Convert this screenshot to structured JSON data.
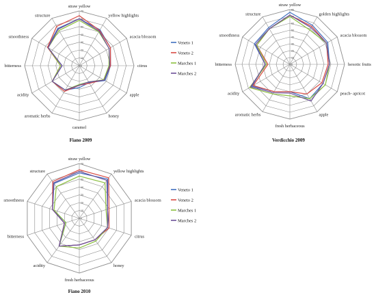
{
  "chart_data": [
    {
      "type": "radar",
      "title": "Fiano 2009",
      "axes": [
        "straw yellow",
        "yellow highlights",
        "acacia blossom",
        "citrus",
        "apple",
        "honey",
        "caramel",
        "aromatic herbs",
        "acidity",
        "bitterness",
        "smoothness",
        "structure"
      ],
      "ticks": [
        "0",
        "10",
        "20",
        "30",
        "40",
        "50",
        "60",
        "70"
      ],
      "rmax": 70,
      "legend_position": "right",
      "series": [
        {
          "name": "Veneto 1",
          "color": "#3f6fc0",
          "values": [
            60,
            53,
            46,
            40,
            38,
            25,
            28,
            36,
            40,
            22,
            47,
            55
          ]
        },
        {
          "name": "Veneto 2",
          "color": "#d84a43",
          "values": [
            64,
            52,
            46,
            40,
            36,
            26,
            25,
            38,
            40,
            24,
            47,
            58
          ]
        },
        {
          "name": "Marches 1",
          "color": "#8bbf3e",
          "values": [
            58,
            50,
            44,
            38,
            36,
            24,
            24,
            36,
            40,
            24,
            46,
            52
          ]
        },
        {
          "name": "Marches 2",
          "color": "#6a4e98",
          "values": [
            60,
            51,
            44,
            39,
            37,
            24,
            25,
            36,
            40,
            22,
            46,
            54
          ]
        }
      ]
    },
    {
      "type": "radar",
      "title": "Verdicchio 2009",
      "axes": [
        "straw yellow",
        "golden highlights",
        "acacia blossom",
        "hexotic fruits",
        "peach- apricot",
        "apple",
        "fresh herbaceous",
        "aromatic herbs",
        "acidity",
        "bitterness",
        "smoothness",
        "structure"
      ],
      "ticks": [
        "0",
        "10",
        "20",
        "30",
        "40",
        "50",
        "60",
        "70",
        "80"
      ],
      "rmax": 80,
      "legend_position": "none",
      "series": [
        {
          "name": "Veneto 1",
          "color": "#3f6fc0",
          "values": [
            76,
            66,
            64,
            58,
            56,
            58,
            40,
            46,
            64,
            36,
            60,
            62
          ]
        },
        {
          "name": "Veneto 2",
          "color": "#d84a43",
          "values": [
            72,
            64,
            62,
            56,
            54,
            50,
            40,
            46,
            62,
            32,
            56,
            60
          ]
        },
        {
          "name": "Marches 1",
          "color": "#8bbf3e",
          "values": [
            70,
            58,
            62,
            58,
            60,
            58,
            46,
            50,
            68,
            34,
            56,
            60
          ]
        },
        {
          "name": "Marches 2",
          "color": "#6a4e98",
          "values": [
            72,
            62,
            62,
            58,
            56,
            62,
            42,
            48,
            66,
            36,
            58,
            60
          ]
        }
      ]
    },
    {
      "type": "radar",
      "title": "Fiano 2010",
      "axes": [
        "straw yellow",
        "yellow highlights",
        "acacia blossom",
        "citrus",
        "honey",
        "fresh herbaceous",
        "acidity",
        "bitterness",
        "smoothness",
        "structure"
      ],
      "ticks": [
        "0",
        "10",
        "20",
        "30",
        "40",
        "50",
        "60",
        "70"
      ],
      "rmax": 70,
      "legend_position": "right",
      "series": [
        {
          "name": "Veneto 1",
          "color": "#3f6fc0",
          "values": [
            58,
            62,
            38,
            40,
            34,
            34,
            44,
            18,
            36,
            55
          ]
        },
        {
          "name": "Veneto 2",
          "color": "#d84a43",
          "values": [
            62,
            64,
            40,
            40,
            34,
            34,
            44,
            20,
            36,
            58
          ]
        },
        {
          "name": "Marches 1",
          "color": "#8bbf3e",
          "values": [
            54,
            56,
            36,
            38,
            36,
            38,
            44,
            18,
            34,
            50
          ]
        },
        {
          "name": "Marches 2",
          "color": "#6a4e98",
          "values": [
            60,
            60,
            38,
            38,
            34,
            34,
            44,
            20,
            36,
            56
          ]
        }
      ]
    }
  ]
}
